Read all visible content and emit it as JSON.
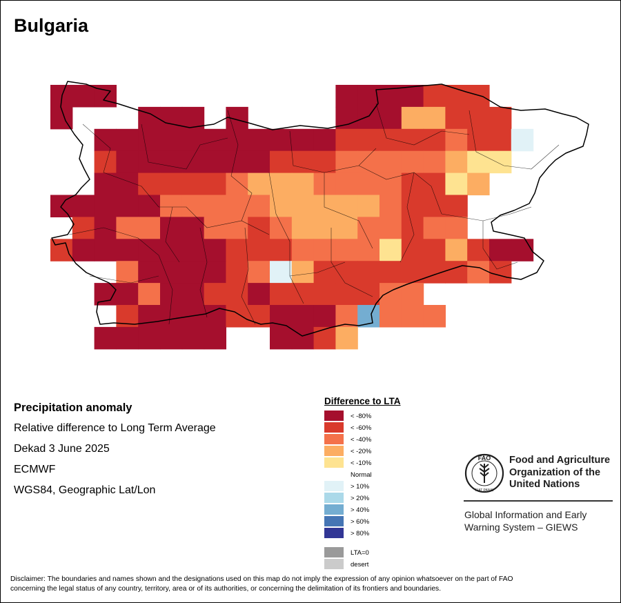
{
  "title": "Bulgaria",
  "info": {
    "heading": "Precipitation anomaly",
    "subtitle": "Relative difference to Long Term Average",
    "period": "Dekad 3 June 2025",
    "source": "ECMWF",
    "projection": "WGS84, Geographic Lat/Lon"
  },
  "legend": {
    "title": "Difference to LTA",
    "items": [
      {
        "label": "< -80%",
        "color": "#a50f2d"
      },
      {
        "label": "< -60%",
        "color": "#d93a2c"
      },
      {
        "label": "< -40%",
        "color": "#f4714a"
      },
      {
        "label": "< -20%",
        "color": "#fcad62"
      },
      {
        "label": "< -10%",
        "color": "#fee391"
      },
      {
        "label": "Normal",
        "color": "#ffffff"
      },
      {
        "label": "> 10%",
        "color": "#e1f2f7"
      },
      {
        "label": "> 20%",
        "color": "#abd9e9"
      },
      {
        "label": "> 40%",
        "color": "#74add1"
      },
      {
        "label": "> 60%",
        "color": "#4575b4"
      },
      {
        "label": "> 80%",
        "color": "#313695"
      },
      {
        "label": "LTA=0",
        "color": "#9a9a9a"
      },
      {
        "label": "desert",
        "color": "#cbcbcb"
      }
    ]
  },
  "map_grid": {
    "key": ".=none, 8=<-80%, 6=<-60%, 4=<-40%, 2=<-20%, 1=<-10%, N=>10%, B=>40%",
    "rows": [
      "888..........8888666..",
      "8...888.8....88822666.",
      "..8888888888866666466N",
      "..6888888866644444211.",
      "..886666422244446612..",
      "8888844444222224666...",
      ".684488446422244644...",
      "6888888866644441662688",
      "...4888864N2666666646.",
      "..884886686666644.....",
      "...68888668884B444....",
      "..888888..8862........"
    ]
  },
  "fao": {
    "name_lines": [
      "Food and Agriculture",
      "Organization of the",
      "United Nations"
    ],
    "logo_letters": "FAO",
    "logo_ring_text": "FIAT PANIS",
    "giews_lines": [
      "Global Information and Early",
      "Warning System – GIEWS"
    ]
  },
  "disclaimer_lines": [
    "Disclaimer: The boundaries and names shown and the designations used on this map do not imply the expression of any opinion whatsoever on the part of FAO",
    "concerning the legal status of any country, territory, area or of its authorities, or concerning the delimitation of its frontiers and boundaries."
  ]
}
